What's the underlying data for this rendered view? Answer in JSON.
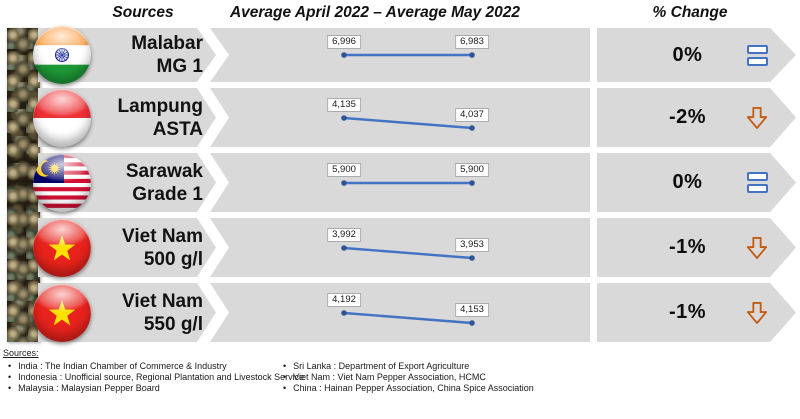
{
  "header": {
    "sources_label": "Sources",
    "period_label": "Average April 2022 – Average May 2022",
    "change_label": "% Change"
  },
  "rows": [
    {
      "name_line1": "Malabar",
      "name_line2": "MG 1",
      "flag": "india",
      "april": "6,996",
      "may": "6,983",
      "change": "0%",
      "trend": "equal"
    },
    {
      "name_line1": "Lampung",
      "name_line2": "ASTA",
      "flag": "indonesia",
      "april": "4,135",
      "may": "4,037",
      "change": "-2%",
      "trend": "down"
    },
    {
      "name_line1": "Sarawak",
      "name_line2": "Grade 1",
      "flag": "malaysia",
      "april": "5,900",
      "may": "5,900",
      "change": "0%",
      "trend": "equal"
    },
    {
      "name_line1": "Viet Nam",
      "name_line2": "500 g/l",
      "flag": "vietnam",
      "april": "3,992",
      "may": "3,953",
      "change": "-1%",
      "trend": "down"
    },
    {
      "name_line1": "Viet Nam",
      "name_line2": "550 g/l",
      "flag": "vietnam",
      "april": "4,192",
      "may": "4,153",
      "change": "-1%",
      "trend": "down"
    }
  ],
  "chart_data": {
    "type": "line",
    "title": "Average April 2022 – Average May 2022",
    "categories": [
      "Average April 2022",
      "Average May 2022"
    ],
    "series": [
      {
        "name": "Malabar MG 1",
        "values": [
          6996,
          6983
        ],
        "pct_change": "0%"
      },
      {
        "name": "Lampung ASTA",
        "values": [
          4135,
          4037
        ],
        "pct_change": "-2%"
      },
      {
        "name": "Sarawak Grade 1",
        "values": [
          5900,
          5900
        ],
        "pct_change": "0%"
      },
      {
        "name": "Viet Nam 500 g/l",
        "values": [
          3992,
          3953
        ],
        "pct_change": "-1%"
      },
      {
        "name": "Viet Nam 550 g/l",
        "values": [
          4192,
          4153
        ],
        "pct_change": "-1%"
      }
    ],
    "legend_position": "none",
    "grid": false,
    "data_labels": true
  },
  "footer": {
    "title": "Sources:",
    "left_items": [
      "India : The Indian Chamber of Commerce & Industry",
      "Indonesia : Unofficial  source, Regional  Plantation and Livestock  Service",
      "Malaysia : Malaysian Pepper Board"
    ],
    "right_items": [
      "Sri Lanka : Department of Export Agriculture",
      "Viet Nam : Viet  Nam Pepper  Association, HCMC",
      "China : Hainan Pepper Association, China Spice  Association"
    ]
  },
  "colors": {
    "band": "#D9D9D9",
    "line": "#4472C4",
    "point": "#2F5597",
    "equal_icon": "#4472C4",
    "down_arrow": "#C55A11"
  }
}
